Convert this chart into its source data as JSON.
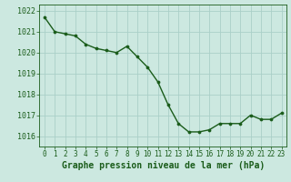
{
  "x": [
    0,
    1,
    2,
    3,
    4,
    5,
    6,
    7,
    8,
    9,
    10,
    11,
    12,
    13,
    14,
    15,
    16,
    17,
    18,
    19,
    20,
    21,
    22,
    23
  ],
  "y": [
    1021.7,
    1021.0,
    1020.9,
    1020.8,
    1020.4,
    1020.2,
    1020.1,
    1020.0,
    1020.3,
    1019.8,
    1019.3,
    1018.6,
    1017.5,
    1016.6,
    1016.2,
    1016.2,
    1016.3,
    1016.6,
    1016.6,
    1016.6,
    1017.0,
    1016.8,
    1016.8,
    1017.1
  ],
  "line_color": "#1a5c1a",
  "marker_color": "#1a5c1a",
  "bg_color": "#cce8e0",
  "grid_color": "#aacfc8",
  "xlabel": "Graphe pression niveau de la mer (hPa)",
  "ylim_min": 1015.5,
  "ylim_max": 1022.3,
  "yticks": [
    1016,
    1017,
    1018,
    1019,
    1020,
    1021,
    1022
  ],
  "xticks": [
    0,
    1,
    2,
    3,
    4,
    5,
    6,
    7,
    8,
    9,
    10,
    11,
    12,
    13,
    14,
    15,
    16,
    17,
    18,
    19,
    20,
    21,
    22,
    23
  ],
  "xlabel_fontsize": 7,
  "ytick_fontsize": 6,
  "xtick_fontsize": 5.5,
  "line_width": 1.0,
  "marker_size": 2.2
}
